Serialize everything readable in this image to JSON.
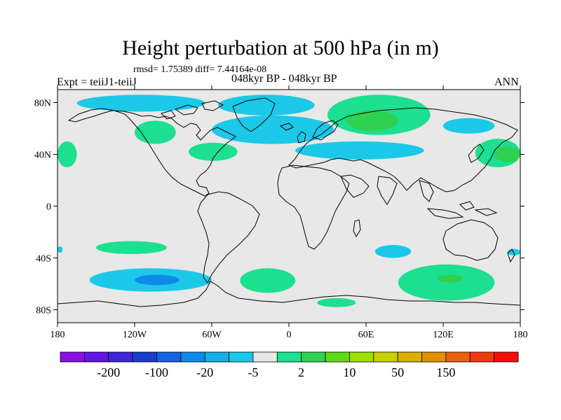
{
  "title": "Height perturbation at 500 hPa (in m)",
  "stats": "rmsd= 1.75389 diff= 7.44164e-08",
  "left_label": "Expt = teiiJ1-teiiJ",
  "center_label": "048kyr BP - 048kyr BP",
  "right_label": "ANN",
  "map": {
    "projection": "cylindrical equidistant",
    "lon_range": [
      -180,
      180
    ],
    "lat_range": [
      -90,
      90
    ],
    "background_color": "#e8e8e8",
    "x_ticks": [
      {
        "lon": -180,
        "label": "180"
      },
      {
        "lon": -120,
        "label": "120W"
      },
      {
        "lon": -60,
        "label": "60W"
      },
      {
        "lon": 0,
        "label": "0"
      },
      {
        "lon": 60,
        "label": "60E"
      },
      {
        "lon": 120,
        "label": "120E"
      },
      {
        "lon": 180,
        "label": "180"
      }
    ],
    "y_ticks": [
      {
        "lat": 80,
        "label": "80N"
      },
      {
        "lat": 40,
        "label": "40N"
      },
      {
        "lat": 0,
        "label": "0"
      },
      {
        "lat": -40,
        "label": "40S"
      },
      {
        "lat": -80,
        "label": "80S"
      }
    ],
    "anomaly_regions": [
      {
        "name": "north-pacific-negative",
        "sign": "negative",
        "level": "-5 to -2",
        "lon": [
          -165,
          -65
        ],
        "lat": [
          73,
          86
        ]
      },
      {
        "name": "arctic-canada-negative",
        "sign": "negative",
        "level": "-5 to -2",
        "lon": [
          -55,
          20
        ],
        "lat": [
          70,
          86
        ]
      },
      {
        "name": "north-atlantic-negative",
        "sign": "negative",
        "level": "-5 to -2",
        "lon": [
          -60,
          35
        ],
        "lat": [
          48,
          70
        ]
      },
      {
        "name": "eurasia-negative",
        "sign": "negative",
        "level": "-5 to -2",
        "lon": [
          5,
          105
        ],
        "lat": [
          36,
          50
        ]
      },
      {
        "name": "east-siberia-negative",
        "sign": "negative",
        "level": "-5 to -2",
        "lon": [
          120,
          160
        ],
        "lat": [
          56,
          68
        ]
      },
      {
        "name": "north-america-positive",
        "sign": "positive",
        "level": "2 to 10",
        "lon": [
          -120,
          -88
        ],
        "lat": [
          48,
          66
        ]
      },
      {
        "name": "west-atlantic-positive",
        "sign": "positive",
        "level": "2 to 10",
        "lon": [
          -78,
          -40
        ],
        "lat": [
          35,
          49
        ]
      },
      {
        "name": "north-russia-positive",
        "sign": "positive",
        "level": "2 to 10",
        "lon": [
          30,
          110
        ],
        "lat": [
          55,
          86
        ]
      },
      {
        "name": "north-russia-core-positive",
        "sign": "positive",
        "level": "10 to 20",
        "lon": [
          45,
          85
        ],
        "lat": [
          58,
          74
        ]
      },
      {
        "name": "dateline-east-positive",
        "sign": "positive",
        "level": "2 to 10",
        "lon": [
          -180,
          -165
        ],
        "lat": [
          30,
          50
        ]
      },
      {
        "name": "dateline-west-positive",
        "sign": "positive",
        "level": "2 to 10",
        "lon": [
          145,
          180
        ],
        "lat": [
          30,
          52
        ]
      },
      {
        "name": "dateline-west-core-positive",
        "sign": "positive",
        "level": "10 to 20",
        "lon": [
          160,
          180
        ],
        "lat": [
          34,
          46
        ]
      },
      {
        "name": "south-pacific-positive",
        "sign": "positive",
        "level": "2 to 10",
        "lon": [
          -150,
          -95
        ],
        "lat": [
          -37,
          -27
        ]
      },
      {
        "name": "south-pacific-negative",
        "sign": "negative",
        "level": "-5 to -2",
        "lon": [
          -155,
          -60
        ],
        "lat": [
          -66,
          -48
        ]
      },
      {
        "name": "south-pacific-core-negative",
        "sign": "negative",
        "level": "-20 to -5",
        "lon": [
          -120,
          -85
        ],
        "lat": [
          -61,
          -53
        ]
      },
      {
        "name": "south-atlantic-positive",
        "sign": "positive",
        "level": "2 to 10",
        "lon": [
          -38,
          5
        ],
        "lat": [
          -67,
          -48
        ]
      },
      {
        "name": "indian-ocean-negative",
        "sign": "negative",
        "level": "-5 to -2",
        "lon": [
          67,
          95
        ],
        "lat": [
          -40,
          -30
        ]
      },
      {
        "name": "south-indian-positive",
        "sign": "positive",
        "level": "2 to 10",
        "lon": [
          85,
          160
        ],
        "lat": [
          -73,
          -45
        ]
      },
      {
        "name": "south-indian-core-positive",
        "sign": "positive",
        "level": "10 to 20",
        "lon": [
          115,
          135
        ],
        "lat": [
          -59,
          -53
        ]
      },
      {
        "name": "antarctic-coast-positive",
        "sign": "positive",
        "level": "2 to 10",
        "lon": [
          22,
          52
        ],
        "lat": [
          -78,
          -71
        ]
      },
      {
        "name": "tasman-negative",
        "sign": "negative",
        "level": "-5 to -2",
        "lon": [
          170,
          180
        ],
        "lat": [
          -38,
          -33
        ]
      },
      {
        "name": "south-dateline-negative",
        "sign": "negative",
        "level": "-5 to -2",
        "lon": [
          -180,
          -176
        ],
        "lat": [
          -36,
          -31
        ]
      }
    ]
  },
  "colorbar": {
    "colors": [
      "#8a10e6",
      "#6018e0",
      "#3c28d6",
      "#1c3ccf",
      "#1264e0",
      "#0e8ae8",
      "#14aee8",
      "#1cc8e8",
      "#e8e8e8",
      "#1cdf90",
      "#30d050",
      "#60d818",
      "#a0e000",
      "#c8d000",
      "#d8b000",
      "#e09000",
      "#e86010",
      "#ef3a10",
      "#f01010"
    ],
    "labels": [
      "-200",
      "-100",
      "-20",
      "-5",
      "2",
      "10",
      "50",
      "150"
    ],
    "label_boundaries": [
      1,
      3,
      5,
      7,
      9,
      11,
      13,
      15
    ]
  }
}
